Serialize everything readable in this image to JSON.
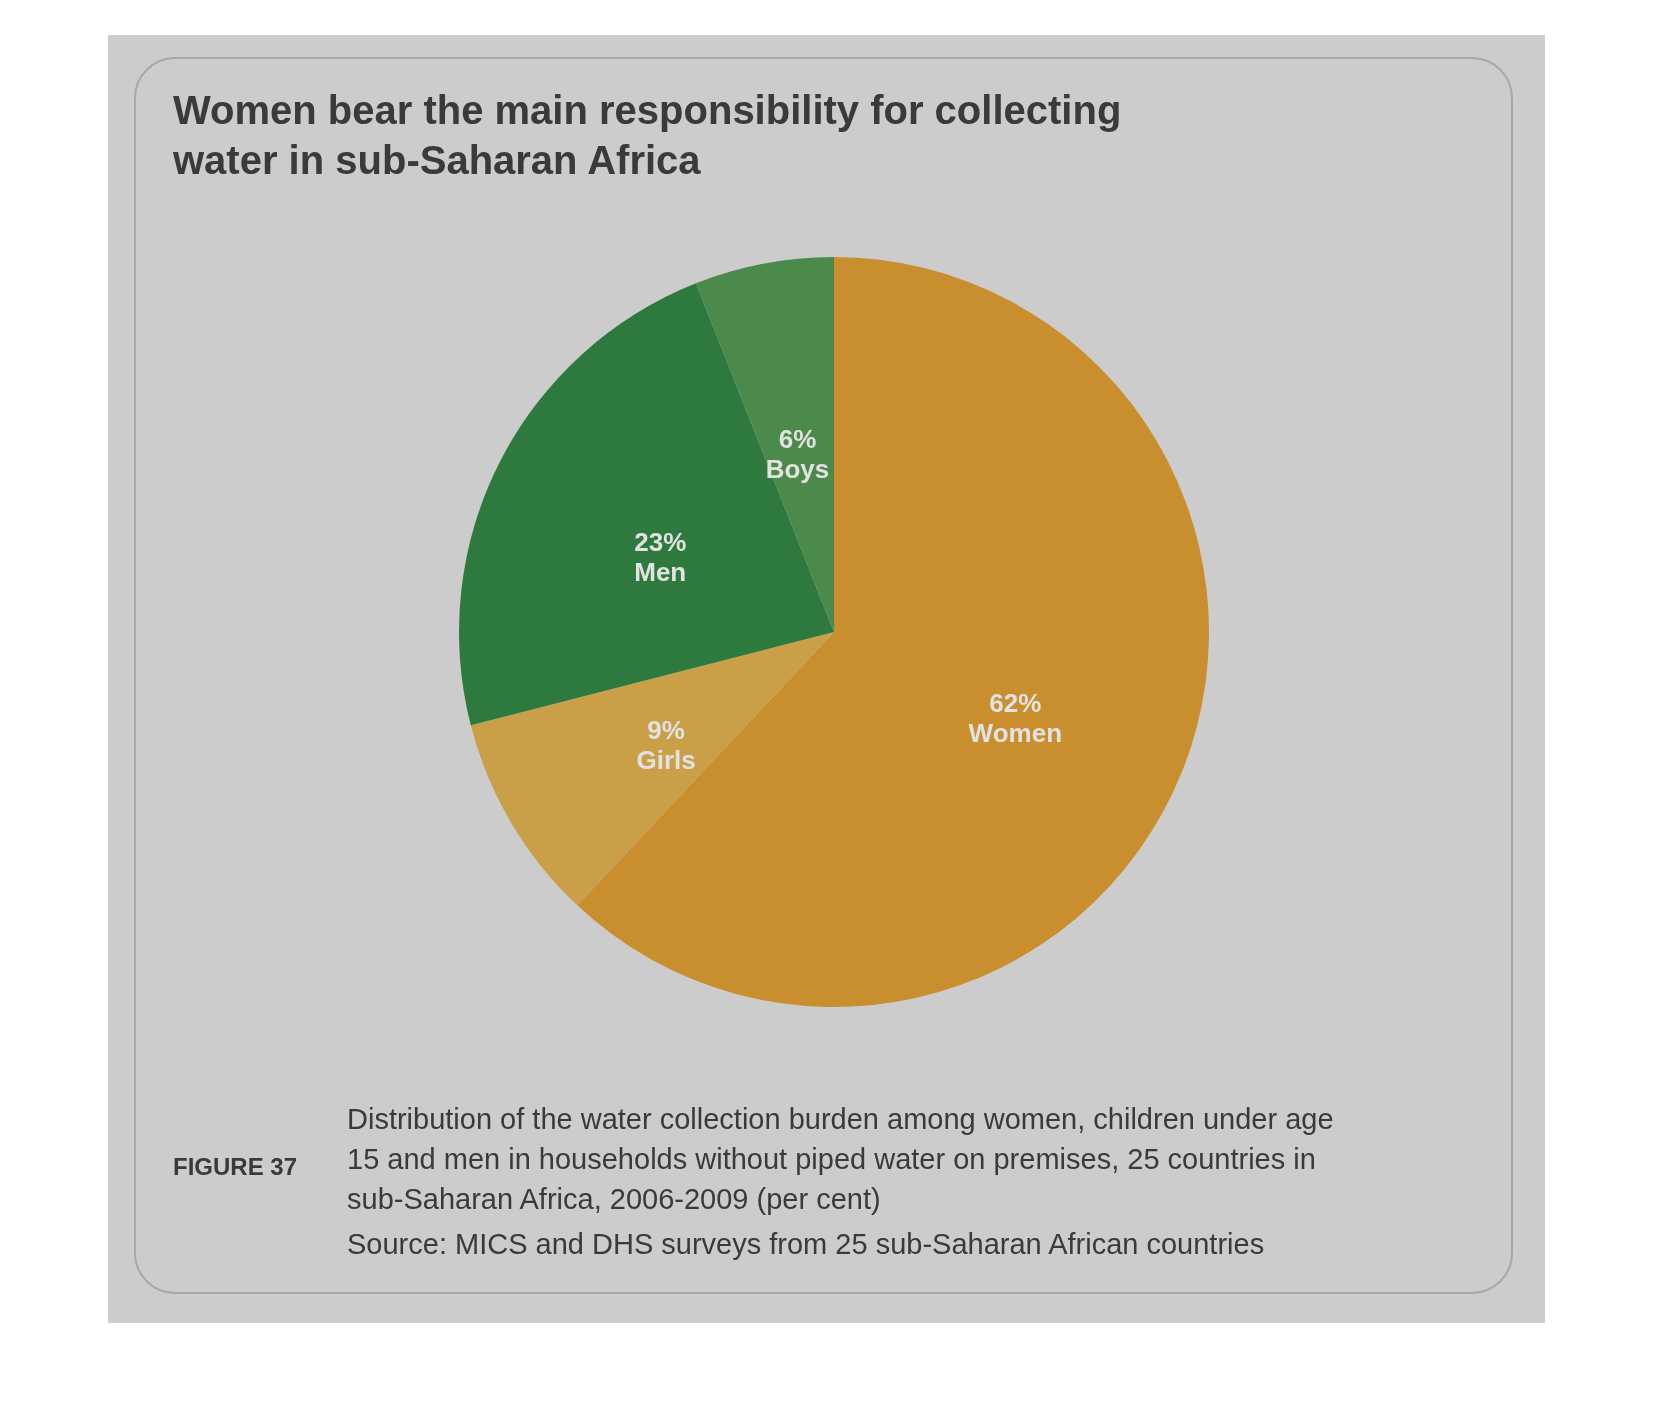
{
  "chart_data": {
    "type": "pie",
    "title": "Women bear the main responsibility for collecting water in sub-Saharan Africa",
    "categories": [
      "Women",
      "Girls",
      "Men",
      "Boys"
    ],
    "values": [
      62,
      9,
      23,
      6
    ],
    "colors": [
      "#c98f2e",
      "#c9a047",
      "#2e7a3e",
      "#4c8a4c"
    ],
    "value_labels": [
      "62%",
      "9%",
      "23%",
      "6%"
    ],
    "annotations": [
      "FIGURE 37",
      "Distribution of the water collection burden among women, children under age 15 and men in households without piped water on premises, 25 countries in sub-Saharan Africa, 2006-2009 (per cent)",
      "Source: MICS and DHS surveys from 25 sub-Saharan African countries"
    ]
  }
}
